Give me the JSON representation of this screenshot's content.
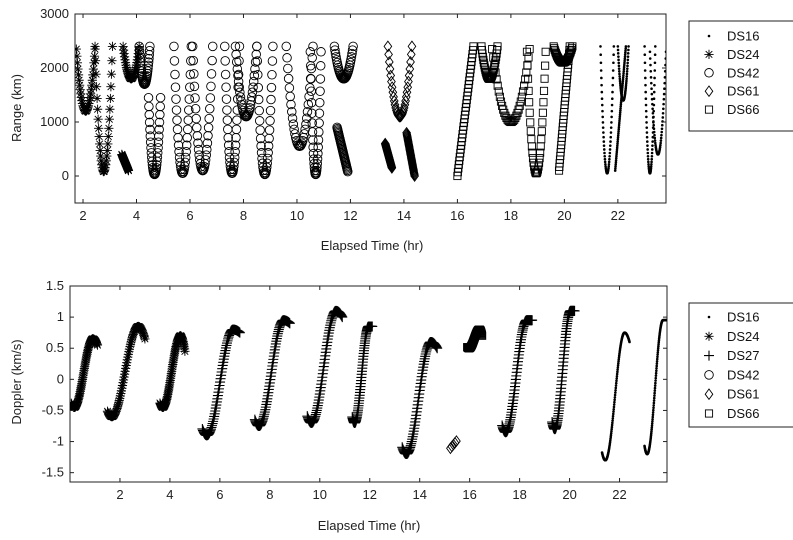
{
  "chart_data": [
    {
      "type": "scatter",
      "xlabel": "Elapsed Time (hr)",
      "ylabel": "Range (km)",
      "xlim": [
        1.7,
        23.8
      ],
      "ylim": [
        -500,
        3000
      ],
      "xticks": [
        "2",
        "4",
        "6",
        "8",
        "10",
        "12",
        "14",
        "16",
        "18",
        "20",
        "22"
      ],
      "xtick_values": [
        2,
        4,
        6,
        8,
        10,
        12,
        14,
        16,
        18,
        20,
        22
      ],
      "yticks": [
        "0",
        "1000",
        "2000",
        "3000"
      ],
      "ytick_values": [
        0,
        1000,
        2000,
        3000
      ],
      "legend": "outside-right",
      "series": [
        {
          "name": "DS16",
          "marker": "dot"
        },
        {
          "name": "DS24",
          "marker": "asterisk"
        },
        {
          "name": "DS42",
          "marker": "circle"
        },
        {
          "name": "DS61",
          "marker": "diamond"
        },
        {
          "name": "DS66",
          "marker": "square"
        }
      ],
      "passes": [
        {
          "series": "DS24",
          "t0": 1.75,
          "t1": 2.45,
          "ymin": 1200,
          "ymax": 2350,
          "shape": "v"
        },
        {
          "series": "DS24",
          "t0": 2.45,
          "t1": 3.1,
          "ymin": 80,
          "ymax": 2400,
          "shape": "v"
        },
        {
          "series": "DS24",
          "t0": 3.45,
          "t1": 3.7,
          "ymin": 100,
          "ymax": 400,
          "shape": "down"
        },
        {
          "series": "DS24",
          "t0": 3.5,
          "t1": 4.1,
          "ymin": 1800,
          "ymax": 2400,
          "shape": "v"
        },
        {
          "series": "DS42",
          "t0": 4.1,
          "t1": 4.5,
          "ymin": 1700,
          "ymax": 2400,
          "shape": "v"
        },
        {
          "series": "DS42",
          "t0": 4.45,
          "t1": 4.9,
          "ymin": 30,
          "ymax": 1450,
          "shape": "v"
        },
        {
          "series": "DS42",
          "t0": 5.4,
          "t1": 6.05,
          "ymin": 50,
          "ymax": 2400,
          "shape": "v"
        },
        {
          "series": "DS42",
          "t0": 6.1,
          "t1": 6.85,
          "ymin": 100,
          "ymax": 2400,
          "shape": "v"
        },
        {
          "series": "DS42",
          "t0": 7.3,
          "t1": 7.85,
          "ymin": 50,
          "ymax": 2400,
          "shape": "v"
        },
        {
          "series": "DS42",
          "t0": 7.7,
          "t1": 8.5,
          "ymin": 1100,
          "ymax": 2400,
          "shape": "v"
        },
        {
          "series": "DS42",
          "t0": 8.5,
          "t1": 9.1,
          "ymin": 30,
          "ymax": 2400,
          "shape": "v"
        },
        {
          "series": "DS42",
          "t0": 9.6,
          "t1": 10.6,
          "ymin": 550,
          "ymax": 2400,
          "shape": "v"
        },
        {
          "series": "DS42",
          "t0": 10.5,
          "t1": 10.9,
          "ymin": 30,
          "ymax": 2300,
          "shape": "v"
        },
        {
          "series": "DS42",
          "t0": 11.4,
          "t1": 12.1,
          "ymin": 1800,
          "ymax": 2400,
          "shape": "v"
        },
        {
          "series": "DS42",
          "t0": 11.5,
          "t1": 11.9,
          "ymin": 80,
          "ymax": 900,
          "shape": "down"
        },
        {
          "series": "DS61",
          "t0": 13.3,
          "t1": 13.55,
          "ymin": 150,
          "ymax": 600,
          "shape": "down"
        },
        {
          "series": "DS61",
          "t0": 13.4,
          "t1": 14.3,
          "ymin": 1100,
          "ymax": 2400,
          "shape": "v"
        },
        {
          "series": "DS61",
          "t0": 14.1,
          "t1": 14.4,
          "ymin": 0,
          "ymax": 800,
          "shape": "down"
        },
        {
          "series": "DS66",
          "t0": 16.0,
          "t1": 16.6,
          "ymin": 0,
          "ymax": 2400,
          "shape": "up"
        },
        {
          "series": "DS66",
          "t0": 16.9,
          "t1": 17.5,
          "ymin": 1800,
          "ymax": 2400,
          "shape": "v"
        },
        {
          "series": "DS66",
          "t0": 17.3,
          "t1": 18.7,
          "ymin": 1000,
          "ymax": 2350,
          "shape": "v"
        },
        {
          "series": "DS66",
          "t0": 18.6,
          "t1": 19.3,
          "ymin": 50,
          "ymax": 2300,
          "shape": "v"
        },
        {
          "series": "DS66",
          "t0": 19.6,
          "t1": 20.3,
          "ymin": 2100,
          "ymax": 2400,
          "shape": "v"
        },
        {
          "series": "DS66",
          "t0": 19.8,
          "t1": 20.2,
          "ymin": 100,
          "ymax": 2400,
          "shape": "up"
        },
        {
          "series": "DS16",
          "t0": 21.35,
          "t1": 21.85,
          "ymin": 50,
          "ymax": 2400,
          "shape": "v"
        },
        {
          "series": "DS16",
          "t0": 21.9,
          "t1": 22.3,
          "ymin": 100,
          "ymax": 2400,
          "shape": "up"
        },
        {
          "series": "DS16",
          "t0": 22.0,
          "t1": 22.4,
          "ymin": 1400,
          "ymax": 2400,
          "shape": "v"
        },
        {
          "series": "DS16",
          "t0": 23.0,
          "t1": 23.4,
          "ymin": 50,
          "ymax": 2400,
          "shape": "v"
        },
        {
          "series": "DS16",
          "t0": 23.2,
          "t1": 23.8,
          "ymin": 400,
          "ymax": 2300,
          "shape": "v"
        }
      ]
    },
    {
      "type": "scatter",
      "xlabel": "Elapsed Time (hr)",
      "ylabel": "Doppler (km/s)",
      "xlim": [
        0.0,
        23.9
      ],
      "ylim": [
        -1.65,
        1.5
      ],
      "xticks": [
        "2",
        "4",
        "6",
        "8",
        "10",
        "12",
        "14",
        "16",
        "18",
        "20",
        "22"
      ],
      "xtick_values": [
        2,
        4,
        6,
        8,
        10,
        12,
        14,
        16,
        18,
        20,
        22
      ],
      "yticks": [
        "-1.5",
        "-1",
        "-0.5",
        "0",
        "0.5",
        "1",
        "1.5"
      ],
      "ytick_values": [
        -1.5,
        -1,
        -0.5,
        0,
        0.5,
        1,
        1.5
      ],
      "legend": "outside-right",
      "series": [
        {
          "name": "DS16",
          "marker": "dot"
        },
        {
          "name": "DS24",
          "marker": "asterisk"
        },
        {
          "name": "DS27",
          "marker": "plus"
        },
        {
          "name": "DS42",
          "marker": "circle"
        },
        {
          "name": "DS61",
          "marker": "diamond"
        },
        {
          "name": "DS66",
          "marker": "square"
        }
      ],
      "passes": [
        {
          "series": "DS24",
          "t0": 0.05,
          "t1": 1.1,
          "vmin": -0.45,
          "vmax": 0.65,
          "endv": 0.55
        },
        {
          "series": "DS24",
          "t0": 1.5,
          "t1": 3.0,
          "vmin": -0.6,
          "vmax": 0.85,
          "endv": 0.65
        },
        {
          "series": "DS24",
          "t0": 3.6,
          "t1": 4.6,
          "vmin": -0.45,
          "vmax": 0.7,
          "endv": 0.45
        },
        {
          "series": "DS27",
          "t0": 5.3,
          "t1": 6.8,
          "vmin": -0.9,
          "vmax": 0.8,
          "endv": 0.75
        },
        {
          "series": "DS27",
          "t0": 7.4,
          "t1": 8.8,
          "vmin": -0.75,
          "vmax": 0.95,
          "endv": 0.9
        },
        {
          "series": "DS27",
          "t0": 9.5,
          "t1": 10.9,
          "vmin": -0.7,
          "vmax": 1.1,
          "endv": 1.0
        },
        {
          "series": "DS27",
          "t0": 11.3,
          "t1": 12.1,
          "vmin": -0.7,
          "vmax": 0.85,
          "endv": 0.85
        },
        {
          "series": "DS27",
          "t0": 13.3,
          "t1": 14.7,
          "vmin": -1.2,
          "vmax": 0.6,
          "endv": 0.5
        },
        {
          "series": "DS66",
          "t0": 15.9,
          "t1": 16.5,
          "vmin": 0.5,
          "vmax": 0.8,
          "endv": 0.7
        },
        {
          "series": "DS27",
          "t0": 17.3,
          "t1": 18.5,
          "vmin": -0.85,
          "vmax": 0.95,
          "endv": 0.95
        },
        {
          "series": "DS27",
          "t0": 19.3,
          "t1": 20.2,
          "vmin": -0.8,
          "vmax": 1.1,
          "endv": 1.1
        },
        {
          "series": "DS16",
          "t0": 21.3,
          "t1": 22.4,
          "vmin": -1.3,
          "vmax": 0.75,
          "endv": 0.6
        },
        {
          "series": "DS16",
          "t0": 23.0,
          "t1": 23.9,
          "vmin": -1.2,
          "vmax": 0.95,
          "endv": 0.95
        }
      ],
      "isolated": [
        {
          "series": "DS61",
          "t": 15.35,
          "v": -1.05
        }
      ]
    }
  ]
}
